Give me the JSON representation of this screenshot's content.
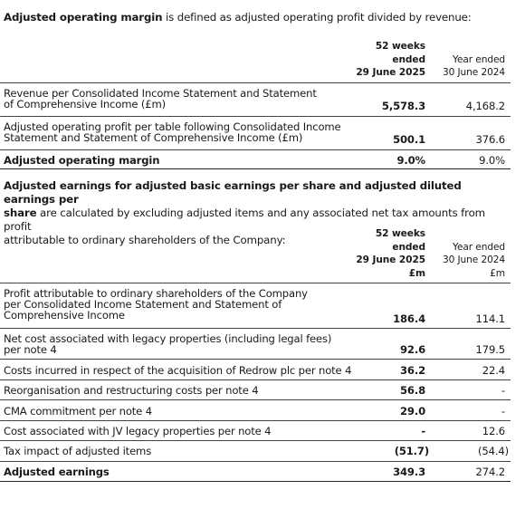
{
  "table1": {
    "intro_bold": "Adjusted operating margin",
    "intro_rest": " is defined as adjusted operating profit divided by revenue:",
    "header_current": [
      "52 weeks",
      "ended",
      "29 June 2025"
    ],
    "header_prior": [
      "Year ended",
      "30 June 2024"
    ],
    "rows": [
      {
        "label": [
          "Revenue per Consolidated Income Statement and Statement",
          "of Comprehensive Income (£m)"
        ],
        "current": "5,578.3",
        "prior": "4,168.2"
      },
      {
        "label": [
          "Adjusted operating profit per table following Consolidated Income",
          "Statement and Statement of Comprehensive Income (£m)"
        ],
        "current": "500.1",
        "prior": "376.6"
      },
      {
        "label": [
          "Adjusted operating margin"
        ],
        "current": "9.0%",
        "prior": "9.0%"
      }
    ]
  },
  "table2": {
    "intro_bold_1": "Adjusted earnings for adjusted basic earnings per share and adjusted diluted earnings per",
    "intro_bold_2": "share",
    "intro_rest_2": " are calculated by excluding adjusted items and any associated net tax amounts from profit",
    "intro_line_3": "attributable to ordinary shareholders of the Company:",
    "header_current": [
      "52 weeks",
      "ended",
      "29 June 2025",
      "£m"
    ],
    "header_prior": [
      "Year ended",
      "30 June 2024",
      "£m"
    ],
    "rows": [
      {
        "label": [
          "Profit attributable to ordinary shareholders of the Company",
          "per Consolidated Income Statement and Statement of",
          "Comprehensive Income"
        ],
        "current": "186.4",
        "prior": "114.1"
      },
      {
        "label": [
          "Net cost associated with legacy properties (including legal fees)",
          "per note 4"
        ],
        "current": "92.6",
        "prior": "179.5"
      },
      {
        "label": [
          "Costs incurred in respect of the acquisition of Redrow plc per note 4"
        ],
        "current": "36.2",
        "prior": "22.4"
      },
      {
        "label": [
          "Reorganisation and restructuring costs per note 4"
        ],
        "current": "56.8",
        "prior": "-"
      },
      {
        "label": [
          "CMA commitment per note 4"
        ],
        "current": "29.0",
        "prior": "-"
      },
      {
        "label": [
          "Cost associated with JV legacy properties per note 4"
        ],
        "current": "-",
        "prior": "12.6"
      },
      {
        "label": [
          "Tax impact of adjusted items"
        ],
        "current": "(51.7)",
        "prior": "(54.4)"
      },
      {
        "label": [
          "Adjusted earnings"
        ],
        "current": "349.3",
        "prior": "274.2"
      }
    ]
  }
}
